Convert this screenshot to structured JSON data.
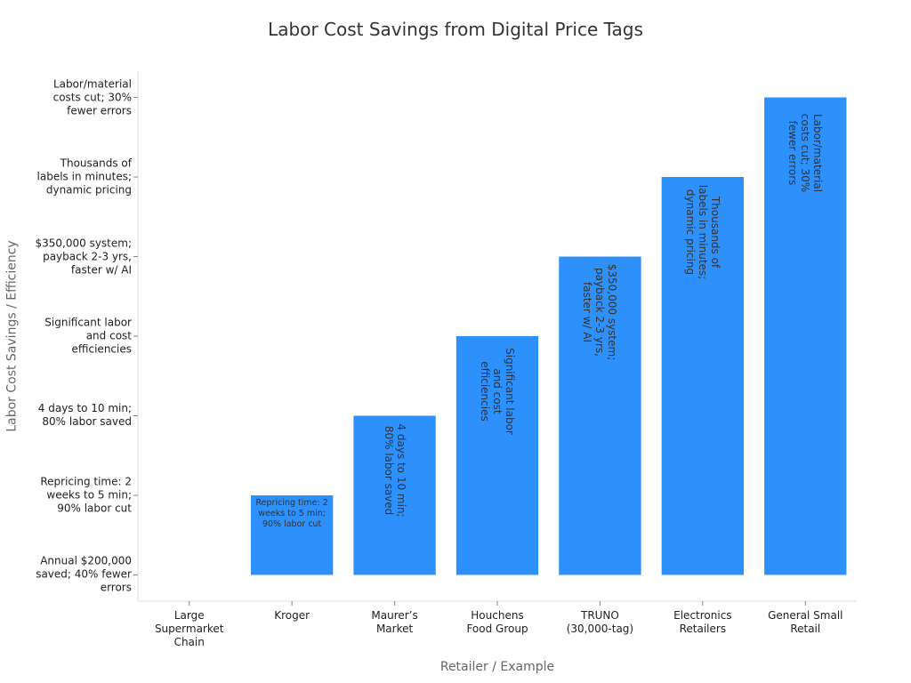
{
  "chart_data": {
    "type": "bar",
    "title": "Labor Cost Savings from Digital Price Tags",
    "x_label": "Retailer / Example",
    "y_label": "Labor Cost Savings / Efficiency",
    "categories": [
      "Large Supermarket Chain",
      "Kroger",
      "Maurer’s Market",
      "Houchens Food Group",
      "TRUNO (30,000-tag)",
      "Electronics Retailers",
      "General Small Retail"
    ],
    "values": [
      0,
      1,
      2,
      3,
      4,
      5,
      6
    ],
    "value_labels": [
      null,
      "Repricing time: 2 weeks to 5 min; 90% labor cut",
      "4 days to 10 min; 80% labor saved",
      "Significant labor and cost efficiencies",
      "$350,000 system; payback 2-3 yrs, faster w/ AI",
      "Thousands of labels in minutes; dynamic pricing",
      "Labor/material costs cut; 30% fewer errors"
    ],
    "color": "#2e90fa",
    "ylim": [
      -0.33,
      6.33
    ],
    "yticks": [
      {
        "value": 0,
        "label": "Annual $200,000 saved; 40% fewer errors"
      },
      {
        "value": 1,
        "label": "Repricing time: 2 weeks to 5 min; 90% labor cut"
      },
      {
        "value": 2,
        "label": "4 days to 10 min; 80% labor saved"
      },
      {
        "value": 3,
        "label": "Significant labor and cost efficiencies"
      },
      {
        "value": 4,
        "label": "$350,000 system; payback 2-3 yrs, faster w/ AI"
      },
      {
        "value": 5,
        "label": "Thousands of labels in minutes; dynamic pricing"
      },
      {
        "value": 6,
        "label": "Labor/material costs cut; 30% fewer errors"
      }
    ],
    "grid": false
  }
}
